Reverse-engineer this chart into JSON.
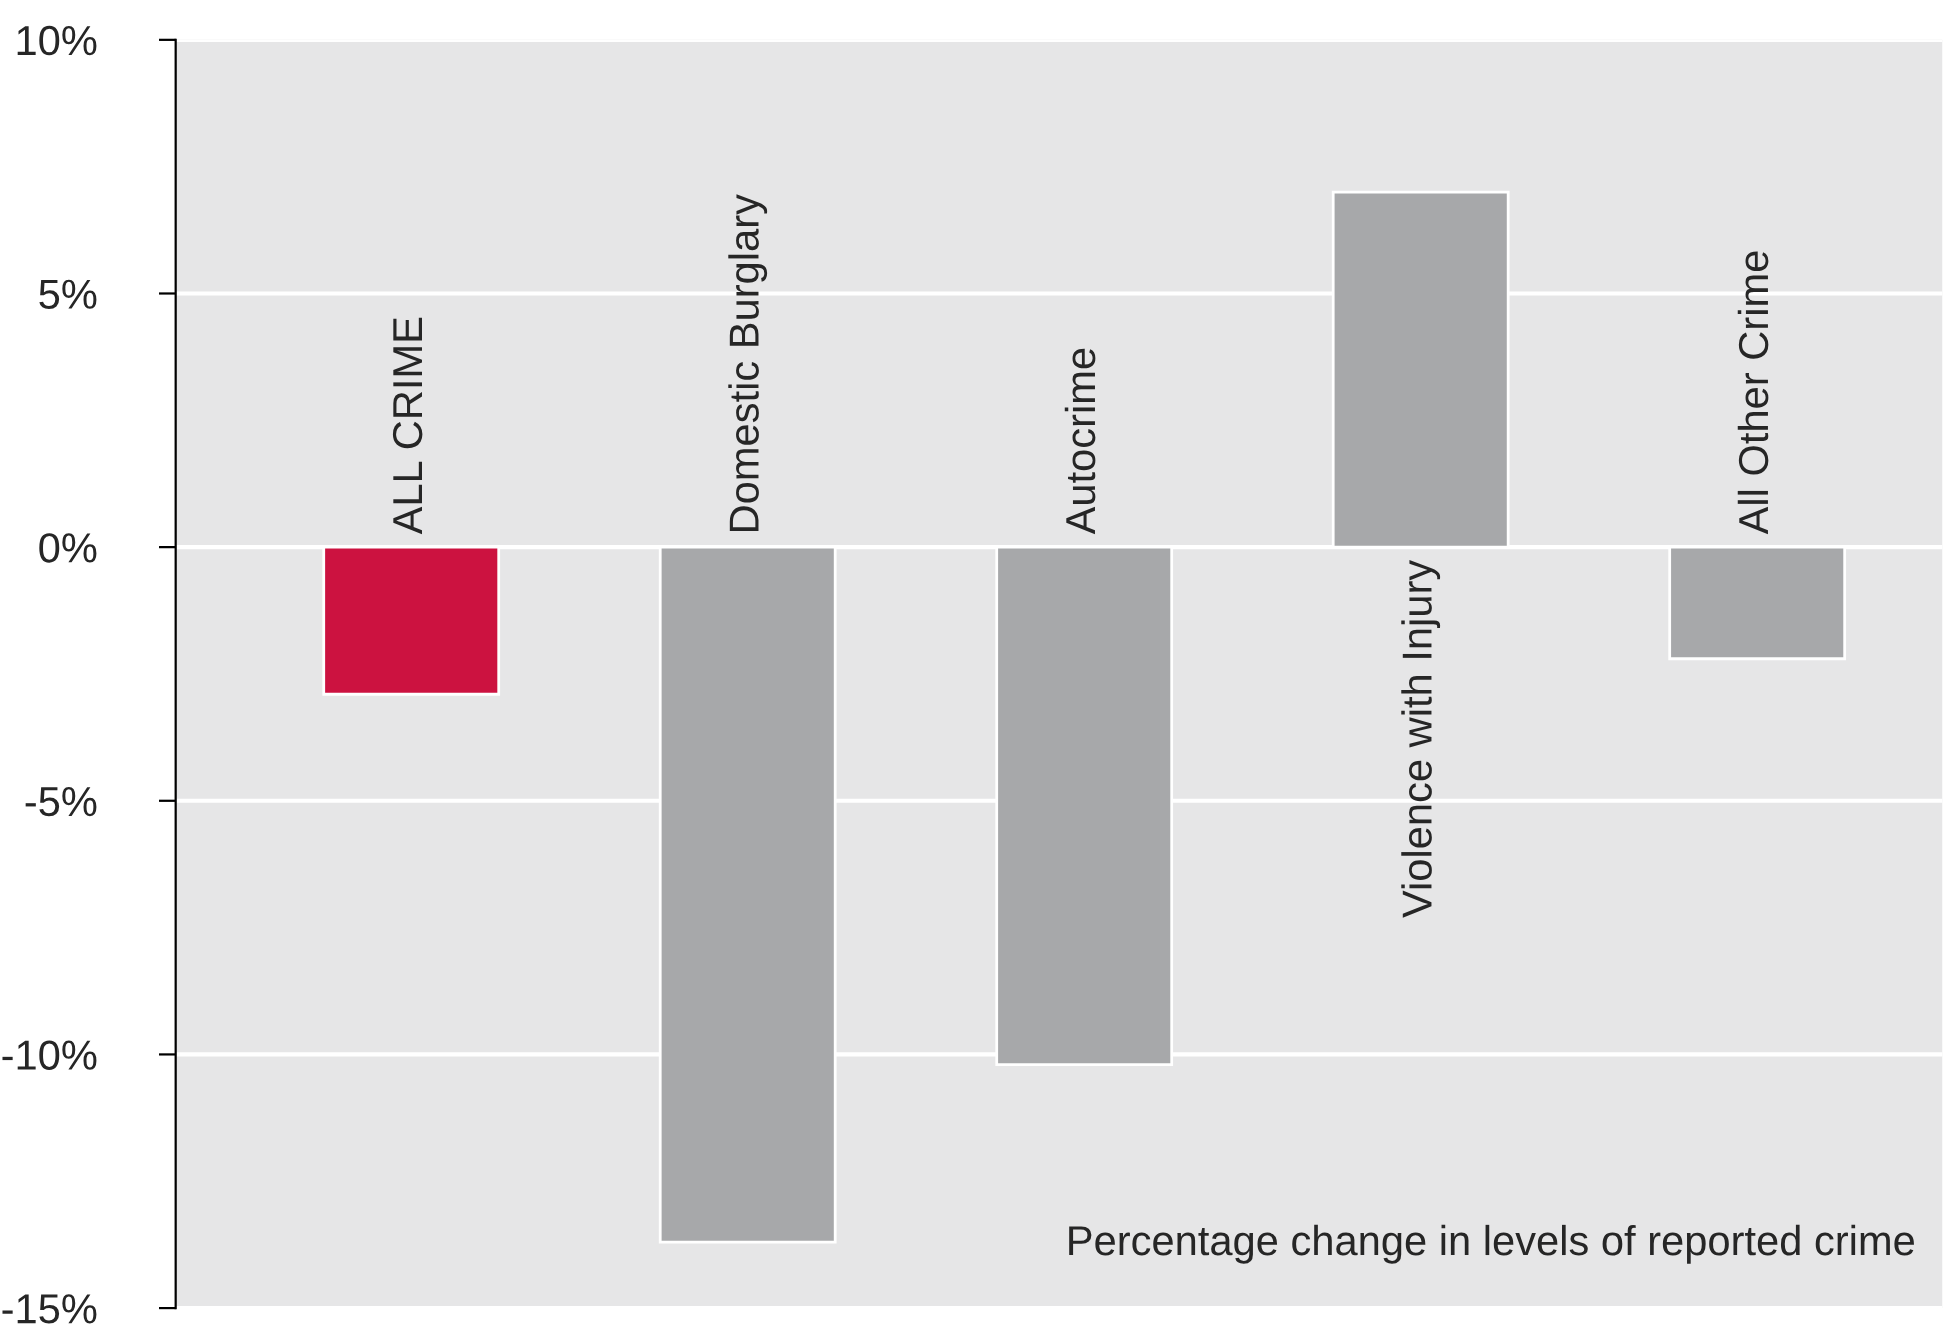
{
  "chart_data": {
    "type": "bar",
    "categories": [
      "ALL CRIME",
      "Domestic Burglary",
      "Autocrime",
      "Violence with Injury",
      "All Other Crime"
    ],
    "values": [
      -2.9,
      -13.7,
      -10.2,
      7.0,
      -2.2
    ],
    "colors": [
      "#cc1240",
      "#a7a8aa",
      "#a7a8aa",
      "#a7a8aa",
      "#a7a8aa"
    ],
    "ylim": [
      -15,
      10
    ],
    "yticks": [
      {
        "value": -15,
        "label": "-15%"
      },
      {
        "value": -10,
        "label": "-10%"
      },
      {
        "value": -5,
        "label": "-5%"
      },
      {
        "value": 0,
        "label": "0%"
      },
      {
        "value": 5,
        "label": "5%"
      },
      {
        "value": 10,
        "label": "10%"
      }
    ],
    "grid": "y",
    "annotations": [
      "Percentage change in levels of reported crime"
    ]
  }
}
